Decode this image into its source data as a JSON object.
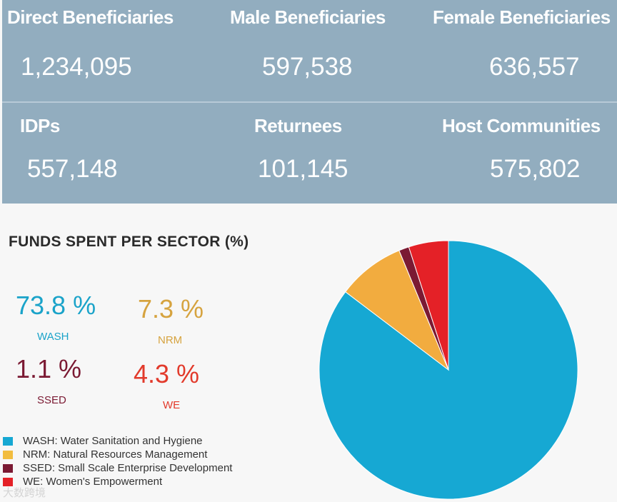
{
  "stats": {
    "row1": [
      {
        "label": "Direct Beneficiaries",
        "value": "1,234,095"
      },
      {
        "label": "Male Beneficiaries",
        "value": "597,538"
      },
      {
        "label": "Female Beneficiaries",
        "value": "636,557"
      }
    ],
    "row2": [
      {
        "label": "IDPs",
        "value": "557,148"
      },
      {
        "label": "Returnees",
        "value": "101,145"
      },
      {
        "label": "Host Communities",
        "value": "575,802"
      }
    ]
  },
  "colors": {
    "wash": "#16a8d3",
    "nrm": "#f2ac3f",
    "ssed": "#7b1a33",
    "we": "#e42127"
  },
  "chart_data": {
    "type": "pie",
    "title": "FUNDS SPENT PER SECTOR (%)",
    "categories": [
      "WASH",
      "NRM",
      "SSED",
      "WE"
    ],
    "values": [
      73.8,
      7.3,
      1.1,
      4.3
    ],
    "labels": [
      "73.8 %",
      "7.3 %",
      "1.1 %",
      "4.3 %"
    ],
    "legend": [
      "WASH: Water Sanitation and Hygiene",
      "NRM: Natural Resources Management",
      "SSED: Small Scale Enterprise Development",
      "WE: Women's Empowerment"
    ]
  },
  "watermark": "大数跨境"
}
